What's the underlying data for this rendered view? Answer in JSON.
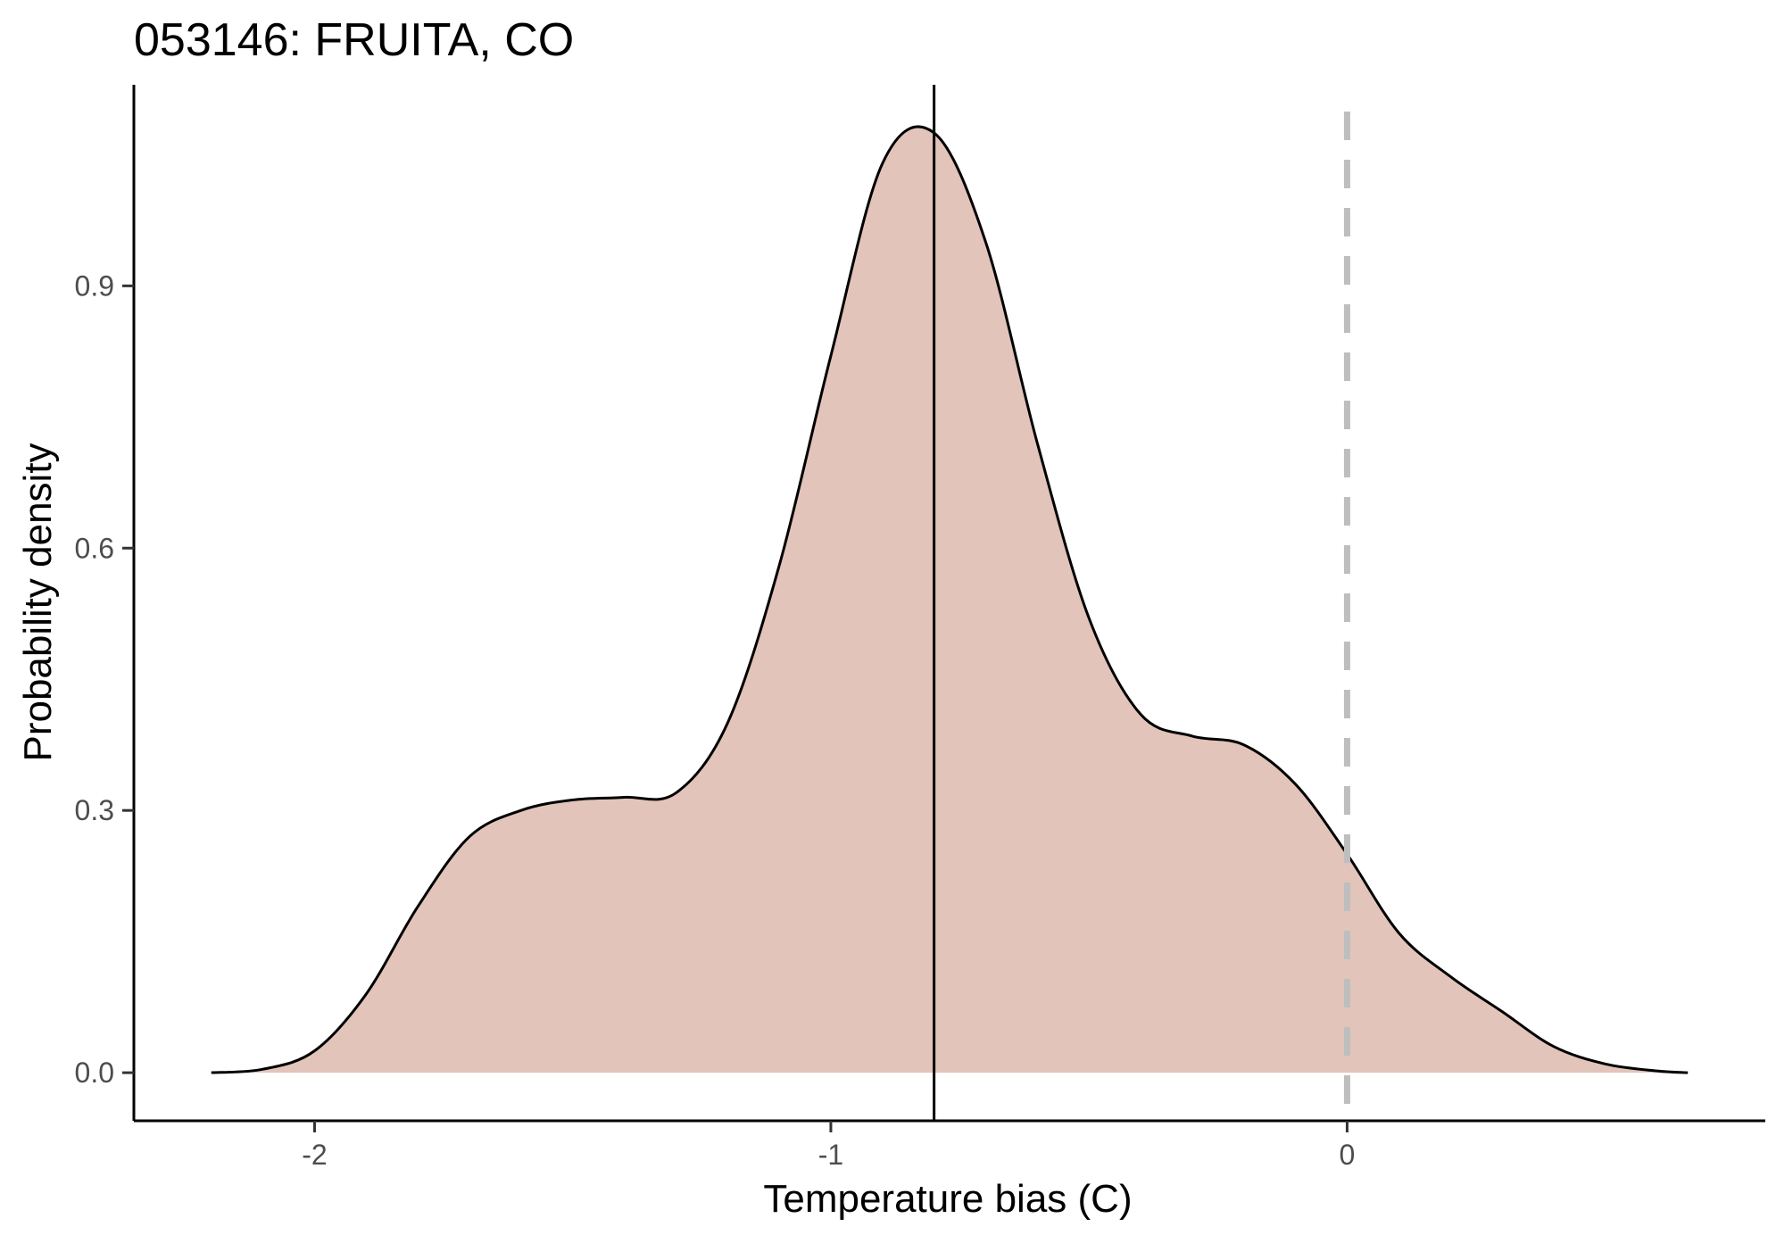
{
  "chart_data": {
    "type": "area",
    "title": "053146: FRUITA, CO",
    "xlabel": "Temperature bias (C)",
    "ylabel": "Probability density",
    "xlim": [
      -2.35,
      0.81
    ],
    "ylim": [
      -0.055,
      1.13
    ],
    "x_ticks": [
      -2,
      -1,
      0
    ],
    "x_tick_labels": [
      "-2",
      "-1",
      "0"
    ],
    "y_ticks": [
      0.0,
      0.3,
      0.6,
      0.9
    ],
    "y_tick_labels": [
      "0.0",
      "0.3",
      "0.6",
      "0.9"
    ],
    "grid": false,
    "legend": "none",
    "fill_color": "#e2c4ba",
    "line_color": "#000000",
    "reference_lines": [
      {
        "x": -0.8,
        "style": "solid",
        "color": "#000000"
      },
      {
        "x": 0.0,
        "style": "dashed",
        "color": "#bebebe"
      }
    ],
    "series": [
      {
        "x": [
          -2.2,
          -2.1,
          -2.0,
          -1.9,
          -1.8,
          -1.7,
          -1.6,
          -1.5,
          -1.4,
          -1.3,
          -1.2,
          -1.1,
          -1.0,
          -0.9,
          -0.8,
          -0.7,
          -0.6,
          -0.5,
          -0.4,
          -0.3,
          -0.2,
          -0.1,
          0.0,
          0.1,
          0.2,
          0.3,
          0.4,
          0.5,
          0.6,
          0.66
        ],
        "y": [
          0.0,
          0.004,
          0.025,
          0.09,
          0.19,
          0.27,
          0.3,
          0.312,
          0.315,
          0.32,
          0.4,
          0.58,
          0.82,
          1.04,
          1.075,
          0.95,
          0.72,
          0.52,
          0.41,
          0.385,
          0.375,
          0.33,
          0.25,
          0.16,
          0.11,
          0.07,
          0.03,
          0.01,
          0.002,
          0.0
        ]
      }
    ]
  }
}
